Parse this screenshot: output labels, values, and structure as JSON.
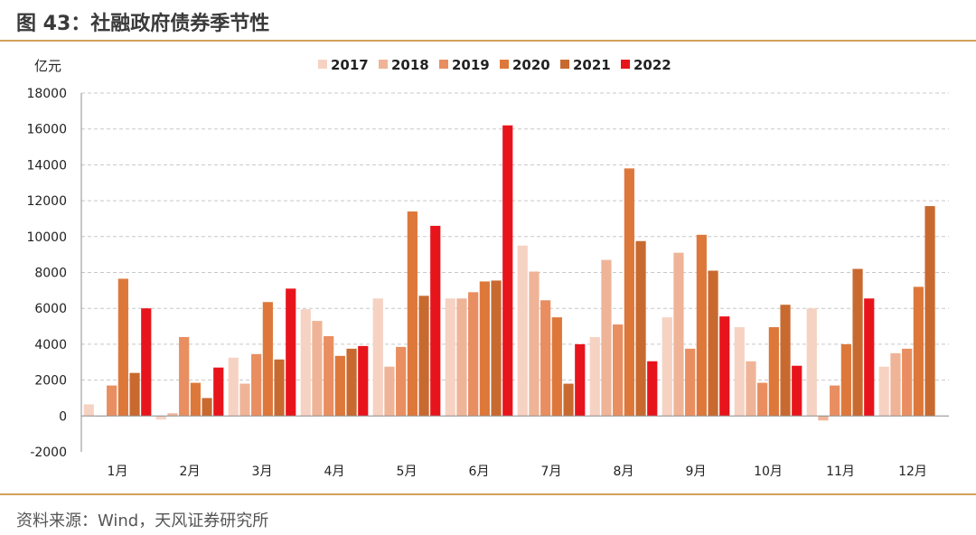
{
  "header": {
    "title": "图 43：社融政府债券季节性"
  },
  "footer": {
    "source": "资料来源：Wind，天风证券研究所"
  },
  "chart_data": {
    "type": "bar",
    "ylabel": "亿元",
    "ylim": [
      -2000,
      18000
    ],
    "yticks": [
      -2000,
      0,
      2000,
      4000,
      6000,
      8000,
      10000,
      12000,
      14000,
      16000,
      18000
    ],
    "grid": true,
    "legend_position": "top",
    "categories": [
      "1月",
      "2月",
      "3月",
      "4月",
      "5月",
      "6月",
      "7月",
      "8月",
      "9月",
      "10月",
      "11月",
      "12月"
    ],
    "series": [
      {
        "name": "2017",
        "color": "#f6d2c3",
        "values": [
          650,
          -200,
          3250,
          5950,
          6550,
          6550,
          9500,
          4400,
          5500,
          4950,
          6000,
          2750
        ]
      },
      {
        "name": "2018",
        "color": "#efb497",
        "values": [
          0,
          150,
          1800,
          5300,
          2750,
          6550,
          8050,
          8700,
          9100,
          3050,
          -250,
          3500
        ]
      },
      {
        "name": "2019",
        "color": "#e98e60",
        "values": [
          1700,
          4400,
          3450,
          4450,
          3850,
          6900,
          6450,
          5100,
          3750,
          1850,
          1700,
          3750
        ]
      },
      {
        "name": "2020",
        "color": "#dd783a",
        "values": [
          7650,
          1850,
          6350,
          3350,
          11400,
          7500,
          5500,
          13800,
          10100,
          4950,
          4000,
          7200
        ]
      },
      {
        "name": "2021",
        "color": "#c86a30",
        "values": [
          2400,
          1000,
          3150,
          3750,
          6700,
          7550,
          1800,
          9750,
          8100,
          6200,
          8200,
          11700
        ]
      },
      {
        "name": "2022",
        "color": "#e8141c",
        "values": [
          6000,
          2700,
          7100,
          3900,
          10600,
          16200,
          4000,
          3050,
          5550,
          2800,
          6550,
          null
        ]
      }
    ]
  }
}
